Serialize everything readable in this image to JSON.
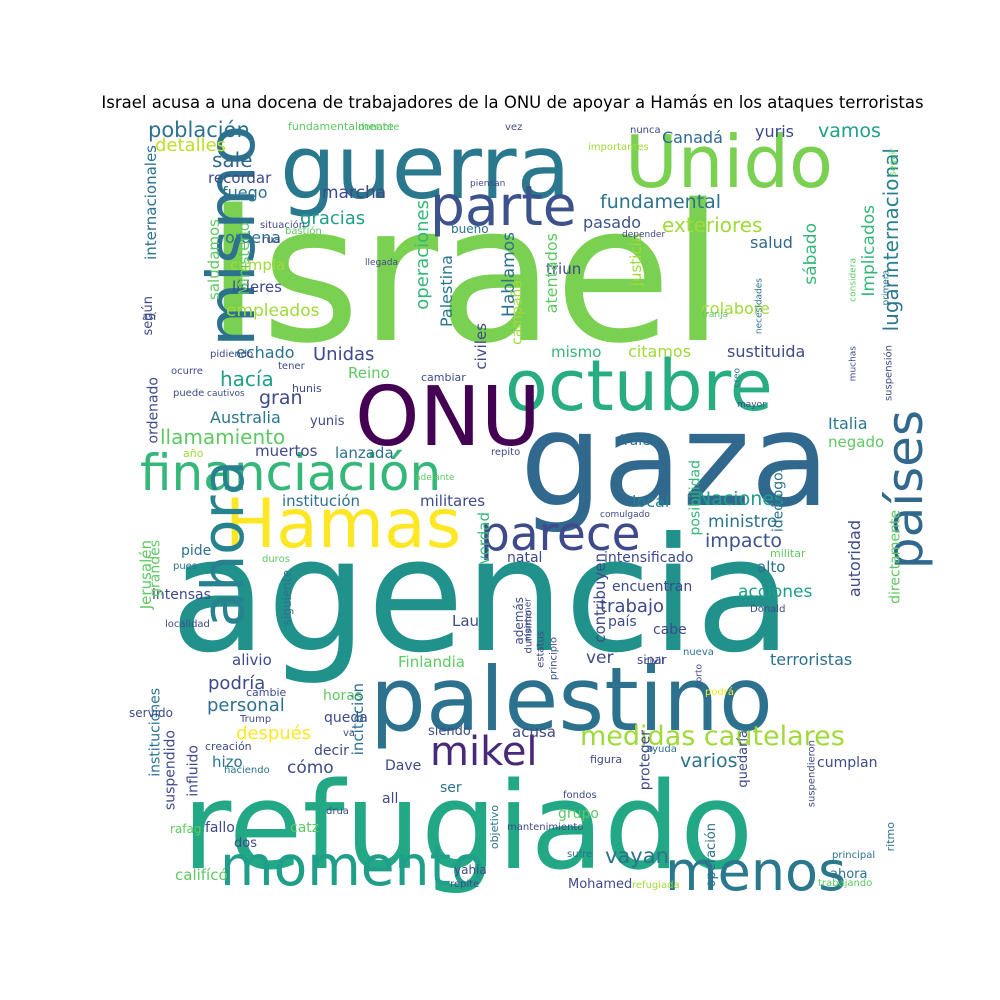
{
  "title": "Israel acusa a una docena de trabajadores de la ONU de apoyar a Hamás en los ataques terroristas",
  "words": [
    {
      "text": "Israel",
      "color": "#7ad151"
    },
    {
      "text": "agencia",
      "color": "#21918c"
    },
    {
      "text": "refugiado",
      "color": "#22a884"
    },
    {
      "text": "gaza",
      "color": "#31688e"
    },
    {
      "text": "palestino",
      "color": "#2c728e"
    },
    {
      "text": "guerra",
      "color": "#2a788e"
    },
    {
      "text": "octubre",
      "color": "#27ad81"
    },
    {
      "text": "Unido",
      "color": "#7ad151"
    },
    {
      "text": "ONU",
      "color": "#440154"
    },
    {
      "text": "Hamas",
      "color": "#fde725"
    },
    {
      "text": "financiación",
      "color": "#35b779"
    },
    {
      "text": "momento",
      "color": "#1f9e89"
    },
    {
      "text": "mismo",
      "color": "#2c728e"
    },
    {
      "text": "ahora",
      "color": "#26828e"
    },
    {
      "text": "países",
      "color": "#31688e"
    },
    {
      "text": "parte",
      "color": "#3b528b"
    },
    {
      "text": "parece",
      "color": "#3e4a89"
    },
    {
      "text": "mikel",
      "color": "#482878"
    },
    {
      "text": "menos",
      "color": "#2a788e"
    },
    {
      "text": "medidas cautelares",
      "color": "#a0da39"
    },
    {
      "text": "población",
      "color": "#2c728e"
    },
    {
      "text": "detalles",
      "color": "#bddf26"
    },
    {
      "text": "sale",
      "color": "#31688e"
    },
    {
      "text": "recordar",
      "color": "#3e4a89"
    },
    {
      "text": "fuego",
      "color": "#2c728e"
    },
    {
      "text": "marcha",
      "color": "#3e4a89"
    },
    {
      "text": "gracias",
      "color": "#1f9e89"
    },
    {
      "text": "fundamental",
      "color": "#2c728e"
    },
    {
      "text": "exteriores",
      "color": "#a0da39"
    },
    {
      "text": "vamos",
      "color": "#1f9e89"
    },
    {
      "text": "Canadá",
      "color": "#31688e"
    },
    {
      "text": "yuris",
      "color": "#3e4a89"
    },
    {
      "text": "internacional",
      "color": "#26828e"
    },
    {
      "text": "lugar",
      "color": "#2a788e"
    },
    {
      "text": "Implicados",
      "color": "#35b779"
    },
    {
      "text": "sábado",
      "color": "#35b779"
    },
    {
      "text": "salud",
      "color": "#31688e"
    },
    {
      "text": "pasado",
      "color": "#3b528b"
    },
    {
      "text": "triun",
      "color": "#3e4a89"
    },
    {
      "text": "colabore",
      "color": "#a0da39"
    },
    {
      "text": "operaciones",
      "color": "#35b779"
    },
    {
      "text": "Palestina",
      "color": "#2a788e"
    },
    {
      "text": "Hablamos",
      "color": "#2c728e"
    },
    {
      "text": "justicia",
      "color": "#a0da39"
    },
    {
      "text": "atentados",
      "color": "#5ec962"
    },
    {
      "text": "campaña",
      "color": "#a0da39"
    },
    {
      "text": "civiles",
      "color": "#3e4a89"
    },
    {
      "text": "ordena",
      "color": "#2c728e"
    },
    {
      "text": "cumpla",
      "color": "#a0da39"
    },
    {
      "text": "líderes",
      "color": "#3e4a89"
    },
    {
      "text": "empleados",
      "color": "#a0da39"
    },
    {
      "text": "Ministerio",
      "color": "#5ec962"
    },
    {
      "text": "saludamos",
      "color": "#5ec962"
    },
    {
      "text": "según",
      "color": "#3e4a89"
    },
    {
      "text": "internacionales",
      "color": "#2c728e"
    },
    {
      "text": "Unidas",
      "color": "#3e4a89"
    },
    {
      "text": "echado",
      "color": "#2c728e"
    },
    {
      "text": "hacía",
      "color": "#1f9e89"
    },
    {
      "text": "gran",
      "color": "#3e4a89"
    },
    {
      "text": "Reino",
      "color": "#5ec962"
    },
    {
      "text": "Australia",
      "color": "#2a788e"
    },
    {
      "text": "llamamiento",
      "color": "#5ec962"
    },
    {
      "text": "muertos",
      "color": "#3e4a89"
    },
    {
      "text": "lanzada",
      "color": "#2c728e"
    },
    {
      "text": "institución",
      "color": "#2c728e"
    },
    {
      "text": "militares",
      "color": "#3e4a89"
    },
    {
      "text": "Naciones",
      "color": "#1f9e89"
    },
    {
      "text": "ministro",
      "color": "#2c728e"
    },
    {
      "text": "impacto",
      "color": "#3b528b"
    },
    {
      "text": "Italia",
      "color": "#2a788e"
    },
    {
      "text": "negado",
      "color": "#5ec962"
    },
    {
      "text": "autoridad",
      "color": "#3e4a89"
    },
    {
      "text": "directamente",
      "color": "#5ec962"
    },
    {
      "text": "mismo",
      "color": "#35b779"
    },
    {
      "text": "citamos",
      "color": "#a0da39"
    },
    {
      "text": "sustituida",
      "color": "#3e4a89"
    },
    {
      "text": "local",
      "color": "#26828e"
    },
    {
      "text": "posibilidad",
      "color": "#35b779"
    },
    {
      "text": "ideólogos",
      "color": "#2c728e"
    },
    {
      "text": "Jerusalén",
      "color": "#5ec962"
    },
    {
      "text": "pide",
      "color": "#2c728e"
    },
    {
      "text": "verdad",
      "color": "#35b779"
    },
    {
      "text": "natal",
      "color": "#3e4a89"
    },
    {
      "text": "contribuyen",
      "color": "#3e4a89"
    },
    {
      "text": "intensificado",
      "color": "#3e4a89"
    },
    {
      "text": "alto",
      "color": "#2c728e"
    },
    {
      "text": "trabajo",
      "color": "#3e4a89"
    },
    {
      "text": "acciones",
      "color": "#1f9e89"
    },
    {
      "text": "encuentran",
      "color": "#3e4a89"
    },
    {
      "text": "país",
      "color": "#3e4a89"
    },
    {
      "text": "cabe",
      "color": "#3e4a89"
    },
    {
      "text": "ver",
      "color": "#3e4a89"
    },
    {
      "text": "intensas",
      "color": "#3e4a89"
    },
    {
      "text": "Lau",
      "color": "#3e4a89"
    },
    {
      "text": "Finlandia",
      "color": "#5ec962"
    },
    {
      "text": "terroristas",
      "color": "#2c728e"
    },
    {
      "text": "alivio",
      "color": "#3e4a89"
    },
    {
      "text": "podría",
      "color": "#3e4a89"
    },
    {
      "text": "personal",
      "color": "#2c728e"
    },
    {
      "text": "horas",
      "color": "#5ec962"
    },
    {
      "text": "queda",
      "color": "#3e4a89"
    },
    {
      "text": "incitación",
      "color": "#2c728e"
    },
    {
      "text": "después",
      "color": "#fde725"
    },
    {
      "text": "acusa",
      "color": "#3e4a89"
    },
    {
      "text": "siendo",
      "color": "#3e4a89"
    },
    {
      "text": "varios",
      "color": "#2c728e"
    },
    {
      "text": "cómo",
      "color": "#3e4a89"
    },
    {
      "text": "decir",
      "color": "#3e4a89"
    },
    {
      "text": "hizo",
      "color": "#2c728e"
    },
    {
      "text": "Dave",
      "color": "#3e4a89"
    },
    {
      "text": "cumplan",
      "color": "#3e4a89"
    },
    {
      "text": "proteger",
      "color": "#3e4a89"
    },
    {
      "text": "quedaría",
      "color": "#3e4a89"
    },
    {
      "text": "grupo",
      "color": "#5ec962"
    },
    {
      "text": "all",
      "color": "#3e4a89"
    },
    {
      "text": "ser",
      "color": "#2c728e"
    },
    {
      "text": "fallo",
      "color": "#3e4a89"
    },
    {
      "text": "catz",
      "color": "#5ec962"
    },
    {
      "text": "dos",
      "color": "#3e4a89"
    },
    {
      "text": "vayan",
      "color": "#2c728e"
    },
    {
      "text": "califícó",
      "color": "#5ec962"
    },
    {
      "text": "yahia",
      "color": "#3e4a89"
    },
    {
      "text": "Mohamed",
      "color": "#3e4a89"
    },
    {
      "text": "ahora",
      "color": "#2c728e"
    },
    {
      "text": "ritmo",
      "color": "#2c728e"
    },
    {
      "text": "suspendido",
      "color": "#3e4a89"
    },
    {
      "text": "influido",
      "color": "#3e4a89"
    },
    {
      "text": "instituciones",
      "color": "#2c728e"
    },
    {
      "text": "grandes",
      "color": "#5ec962"
    },
    {
      "text": "siguiente",
      "color": "#2c728e"
    },
    {
      "text": "ordenado",
      "color": "#3e4a89"
    },
    {
      "text": "servido",
      "color": "#3e4a89"
    },
    {
      "text": "cambie",
      "color": "#3e4a89"
    },
    {
      "text": "Trump",
      "color": "#3e4a89"
    },
    {
      "text": "creación",
      "color": "#3e4a89"
    },
    {
      "text": "rafag",
      "color": "#5ec962"
    },
    {
      "text": "hunis",
      "color": "#3e4a89"
    },
    {
      "text": "yunis",
      "color": "#3e4a89"
    },
    {
      "text": "cambiar",
      "color": "#3e4a89"
    },
    {
      "text": "irales",
      "color": "#2c728e"
    },
    {
      "text": "repito",
      "color": "#3e4a89"
    },
    {
      "text": "militar",
      "color": "#5ec962"
    },
    {
      "text": "Donald",
      "color": "#3e4a89"
    },
    {
      "text": "sinar",
      "color": "#3e4a89"
    },
    {
      "text": "nueva",
      "color": "#2c728e"
    },
    {
      "text": "además",
      "color": "#3e4a89"
    },
    {
      "text": "durísimo",
      "color": "#3e4a89"
    },
    {
      "text": "estatus",
      "color": "#3e4a89"
    },
    {
      "text": "principio",
      "color": "#3e4a89"
    },
    {
      "text": "civil",
      "color": "#3e4a89"
    },
    {
      "text": "corto",
      "color": "#3e4a89"
    },
    {
      "text": "podrá",
      "color": "#fde725"
    },
    {
      "text": "objetivo",
      "color": "#2c728e"
    },
    {
      "text": "operación",
      "color": "#2c728e"
    },
    {
      "text": "figura",
      "color": "#3e4a89"
    },
    {
      "text": "fondos",
      "color": "#3e4a89"
    },
    {
      "text": "mantenimiento",
      "color": "#3e4a89"
    },
    {
      "text": "sufre",
      "color": "#2c728e"
    },
    {
      "text": "refugiada",
      "color": "#a0da39"
    },
    {
      "text": "repite",
      "color": "#3e4a89"
    },
    {
      "text": "principal",
      "color": "#2c728e"
    },
    {
      "text": "trabajando",
      "color": "#5ec962"
    },
    {
      "text": "suspendieron",
      "color": "#3e4a89"
    },
    {
      "text": "ayuda",
      "color": "#2c728e"
    },
    {
      "text": "drua",
      "color": "#3e4a89"
    },
    {
      "text": "haciendo",
      "color": "#2c728e"
    },
    {
      "text": "fundamentalmente",
      "color": "#5ec962"
    },
    {
      "text": "donante",
      "color": "#5ec962"
    },
    {
      "text": "vez",
      "color": "#3e4a89"
    },
    {
      "text": "nunca",
      "color": "#3e4a89"
    },
    {
      "text": "piensan",
      "color": "#3e4a89"
    },
    {
      "text": "importantes",
      "color": "#a0da39"
    },
    {
      "text": "seguir",
      "color": "#5ec962"
    },
    {
      "text": "primera",
      "color": "#2c728e"
    },
    {
      "text": "considera",
      "color": "#5ec962"
    },
    {
      "text": "suspensión",
      "color": "#3e4a89"
    },
    {
      "text": "muchas",
      "color": "#3e4a89"
    },
    {
      "text": "creo",
      "color": "#2c728e"
    },
    {
      "text": "mayor",
      "color": "#3e4a89"
    },
    {
      "text": "necesidades",
      "color": "#2c728e"
    },
    {
      "text": "franja",
      "color": "#5ec962"
    },
    {
      "text": "situación",
      "color": "#3e4a89"
    },
    {
      "text": "bastión",
      "color": "#5ec962"
    },
    {
      "text": "rua",
      "color": "#3e4a89"
    },
    {
      "text": "llegada",
      "color": "#3e4a89"
    },
    {
      "text": "así",
      "color": "#3e4a89"
    },
    {
      "text": "pidiendo",
      "color": "#3e4a89"
    },
    {
      "text": "ocurre",
      "color": "#3e4a89"
    },
    {
      "text": "tener",
      "color": "#3e4a89"
    },
    {
      "text": "puede",
      "color": "#3e4a89"
    },
    {
      "text": "cautivos",
      "color": "#3e4a89"
    },
    {
      "text": "año",
      "color": "#a0da39"
    },
    {
      "text": "adelante",
      "color": "#5ec962"
    },
    {
      "text": "comulgado",
      "color": "#3e4a89"
    },
    {
      "text": "mantener",
      "color": "#3e4a89"
    },
    {
      "text": "duros",
      "color": "#5ec962"
    },
    {
      "text": "pues",
      "color": "#2c728e"
    },
    {
      "text": "localidad",
      "color": "#3e4a89"
    },
    {
      "text": "bueno",
      "color": "#2c728e"
    },
    {
      "text": "depender",
      "color": "#3e4a89"
    },
    {
      "text": "va",
      "color": "#3e4a89"
    }
  ]
}
